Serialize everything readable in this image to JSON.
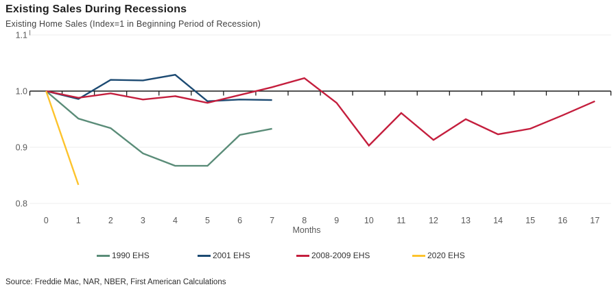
{
  "header": {
    "title": "Existing Sales During Recessions",
    "subtitle": "Existing Home Sales (Index=1 in Beginning Period of Recession)"
  },
  "chart_data": {
    "type": "line",
    "title": "Existing Sales During Recessions",
    "subtitle": "Existing Home Sales (Index=1 in Beginning Period of Recession)",
    "xlabel": "Months",
    "ylabel": "",
    "x": [
      0,
      1,
      2,
      3,
      4,
      5,
      6,
      7,
      8,
      9,
      10,
      11,
      12,
      13,
      14,
      15,
      16,
      17
    ],
    "ylim": [
      0.8,
      1.1
    ],
    "y_ticks": [
      {
        "label": "1.1",
        "value": 1.1
      },
      {
        "label": "1.0",
        "value": 1.0
      },
      {
        "label": "0.9",
        "value": 0.9
      },
      {
        "label": "0.8",
        "value": 0.8
      }
    ],
    "baseline_value": 1.0,
    "grid": "horizontal-light",
    "legend_position": "bottom",
    "series": [
      {
        "name": "1990 EHS",
        "color": "#5a8c78",
        "values": [
          1.0,
          0.951,
          0.934,
          0.889,
          0.867,
          0.867,
          0.922,
          0.933
        ]
      },
      {
        "name": "2001 EHS",
        "color": "#1c4a72",
        "values": [
          1.0,
          0.986,
          1.02,
          1.019,
          1.029,
          0.982,
          0.985,
          0.984
        ]
      },
      {
        "name": "2008-2009 EHS",
        "color": "#c41e3d",
        "values": [
          1.0,
          0.988,
          0.996,
          0.985,
          0.991,
          0.979,
          0.993,
          1.007,
          1.023,
          0.979,
          0.903,
          0.961,
          0.913,
          0.95,
          0.923,
          0.933,
          0.957,
          0.982
        ]
      },
      {
        "name": "2020 EHS",
        "color": "#fdc32c",
        "values": [
          1.0,
          0.833
        ]
      }
    ],
    "axis_color": "#1a1a1a",
    "gridline_color": "#ececec",
    "tick_label_color": "#595959"
  },
  "footer": {
    "source": "Source: Freddie Mac, NAR, NBER, First American Calculations"
  }
}
